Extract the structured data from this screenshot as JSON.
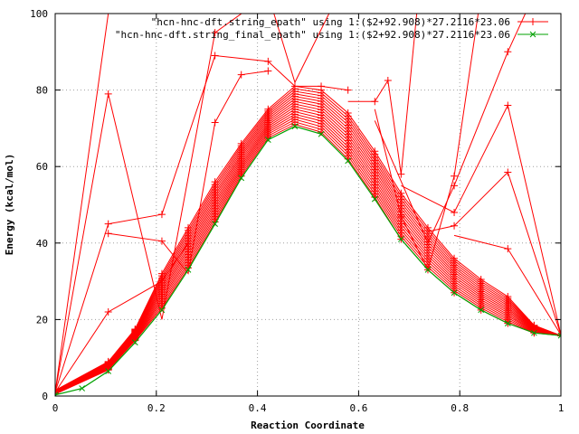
{
  "chart_data": {
    "type": "line",
    "title": "",
    "xlabel": "Reaction Coordinate",
    "ylabel": "Energy (kcal/mol)",
    "xlim": [
      0,
      1
    ],
    "ylim": [
      0,
      100
    ],
    "xticks": [
      "0",
      "0.2",
      "0.4",
      "0.6",
      "0.8",
      "1"
    ],
    "yticks": [
      "0",
      "20",
      "40",
      "60",
      "80",
      "100"
    ],
    "grid": true,
    "legend_position": "top-right",
    "series": [
      {
        "name": "\"hcn-hnc-dft.string_epath\" using 1:($2+92.908)*27.2116*23.06",
        "color": "#ff0000",
        "marker": "plus",
        "role": "band",
        "x": [
          0,
          0.105,
          0.158,
          0.211,
          0.263,
          0.316,
          0.368,
          0.421,
          0.474,
          0.526,
          0.579,
          0.632,
          0.684,
          0.737,
          0.789,
          0.842,
          0.895,
          0.947,
          1.0
        ],
        "envelope_low": [
          0.5,
          6.8,
          14.5,
          23.0,
          33.5,
          45.5,
          57.5,
          67.5,
          71.0,
          69.0,
          62.0,
          52.0,
          41.0,
          33.0,
          27.0,
          22.5,
          19.0,
          16.5,
          15.8
        ],
        "envelope_high": [
          1.5,
          9.0,
          17.5,
          32.0,
          44.0,
          56.0,
          66.0,
          75.0,
          81.0,
          80.0,
          74.0,
          64.0,
          53.0,
          44.0,
          36.0,
          30.5,
          26.0,
          18.5,
          15.8
        ],
        "outliers": [
          {
            "x": 0.105,
            "y": 79
          },
          {
            "x": 0.105,
            "y": 45
          },
          {
            "x": 0.105,
            "y": 42.5
          },
          {
            "x": 0.105,
            "y": 22
          },
          {
            "x": 0.211,
            "y": 47.5
          },
          {
            "x": 0.211,
            "y": 40.5
          },
          {
            "x": 0.316,
            "y": 71.5
          },
          {
            "x": 0.316,
            "y": 89
          },
          {
            "x": 0.316,
            "y": 95
          },
          {
            "x": 0.368,
            "y": 84
          },
          {
            "x": 0.421,
            "y": 87.5
          },
          {
            "x": 0.421,
            "y": 85
          },
          {
            "x": 0.526,
            "y": 81
          },
          {
            "x": 0.579,
            "y": 80
          },
          {
            "x": 0.632,
            "y": 77
          },
          {
            "x": 0.658,
            "y": 82.5
          },
          {
            "x": 0.684,
            "y": 58
          },
          {
            "x": 0.684,
            "y": 47
          },
          {
            "x": 0.789,
            "y": 57.5
          },
          {
            "x": 0.789,
            "y": 55
          },
          {
            "x": 0.789,
            "y": 48
          },
          {
            "x": 0.789,
            "y": 44.5
          },
          {
            "x": 0.895,
            "y": 90
          },
          {
            "x": 0.895,
            "y": 76
          },
          {
            "x": 0.895,
            "y": 58.5
          },
          {
            "x": 0.895,
            "y": 38.5
          }
        ]
      },
      {
        "name": "\"hcn-hnc-dft.string_final_epath\" using 1:($2+92.908)*27.2116*23.06",
        "color": "#00a000",
        "marker": "x",
        "x": [
          0,
          0.053,
          0.105,
          0.158,
          0.211,
          0.263,
          0.316,
          0.368,
          0.421,
          0.474,
          0.526,
          0.579,
          0.632,
          0.684,
          0.737,
          0.789,
          0.842,
          0.895,
          0.947,
          1.0
        ],
        "y": [
          0.3,
          2.0,
          6.5,
          14.0,
          22.5,
          33.0,
          45.0,
          57.0,
          67.0,
          70.5,
          68.5,
          61.5,
          51.5,
          41.0,
          33.0,
          27.0,
          22.5,
          19.0,
          16.5,
          15.8
        ]
      }
    ]
  }
}
